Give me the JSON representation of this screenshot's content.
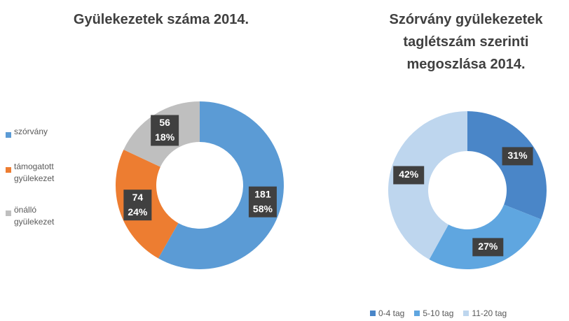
{
  "chart_data": [
    {
      "type": "donut",
      "title": "Gyülekezetek száma 2014.",
      "categories": [
        "szórvány",
        "támogatott gyülekezet",
        "önálló gyülekezet"
      ],
      "values": [
        181,
        74,
        56
      ],
      "percent_labels": [
        "58%",
        "24%",
        "18%"
      ],
      "colors": [
        "#5b9bd5",
        "#ed7d31",
        "#bfbfbf"
      ],
      "legend": "left"
    },
    {
      "type": "donut",
      "title": "Szórvány gyülekezetek taglétszám szerinti megoszlása 2014.",
      "categories": [
        "0-4 tag",
        "5-10 tag",
        "11-20 tag"
      ],
      "values": [
        31,
        27,
        42
      ],
      "value_labels": [
        "31%",
        "27%",
        "42%"
      ],
      "colors": [
        "#4a86c8",
        "#5fa6e0",
        "#bed6ee"
      ],
      "legend": "bottom"
    }
  ]
}
